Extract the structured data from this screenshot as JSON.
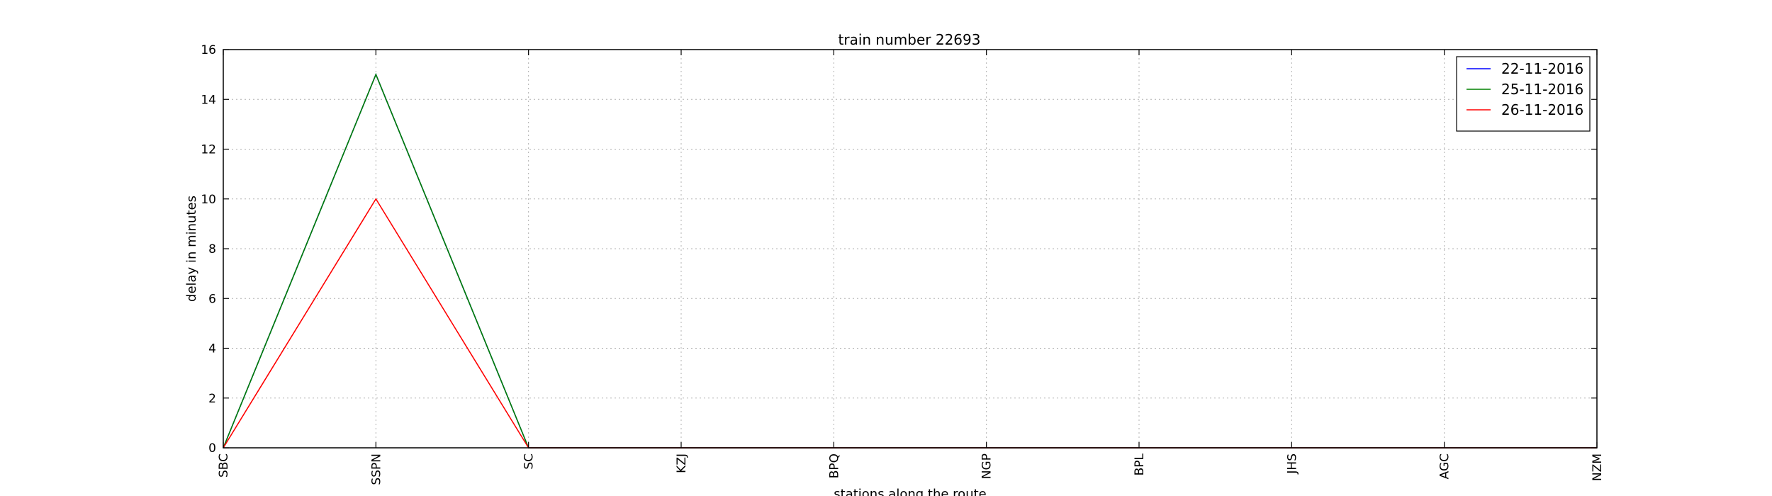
{
  "chart_data": {
    "type": "line",
    "title": "train number 22693",
    "xlabel": "stations along the route",
    "ylabel": "delay in minutes",
    "categories": [
      "SBC",
      "SSPN",
      "SC",
      "KZJ",
      "BPQ",
      "NGP",
      "BPL",
      "JHS",
      "AGC",
      "NZM"
    ],
    "ylim": [
      0,
      16
    ],
    "yticks": [
      0,
      2,
      4,
      6,
      8,
      10,
      12,
      14,
      16
    ],
    "grid": true,
    "legend_position": "top-right",
    "series": [
      {
        "name": "22-11-2016",
        "color": "#0000ff",
        "values": [
          0,
          15,
          0,
          0,
          0,
          0,
          0,
          0,
          0,
          0
        ]
      },
      {
        "name": "25-11-2016",
        "color": "#008000",
        "values": [
          0,
          15,
          0,
          0,
          0,
          0,
          0,
          0,
          0,
          0
        ]
      },
      {
        "name": "26-11-2016",
        "color": "#ff0000",
        "values": [
          0,
          10,
          0,
          0,
          0,
          0,
          0,
          0,
          0,
          0
        ]
      }
    ]
  }
}
